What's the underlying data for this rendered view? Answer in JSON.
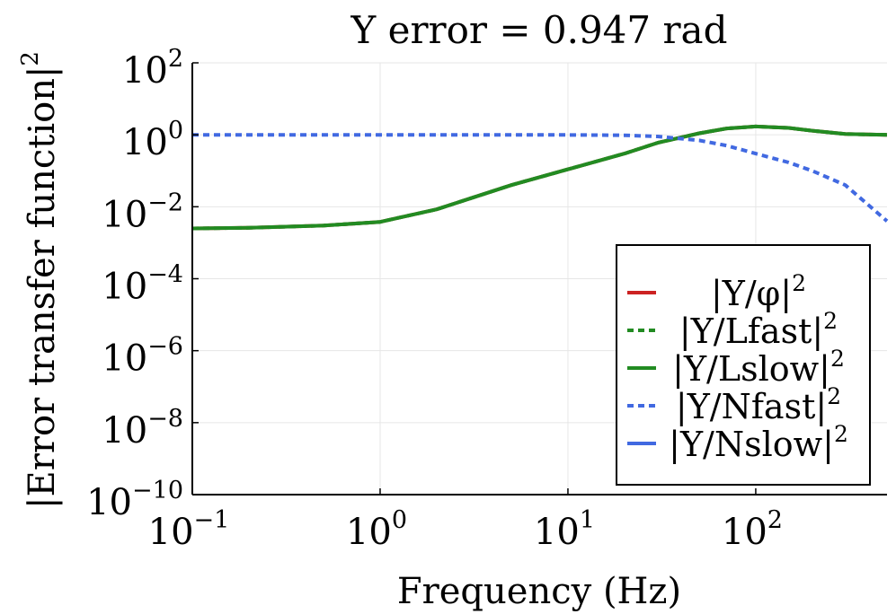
{
  "chart_data": {
    "type": "line",
    "title": "Y error = 0.947 rad",
    "xlabel": "Frequency (Hz)",
    "ylabel": "|Error transfer function|",
    "ylabel_exp": "2",
    "xscale": "log",
    "yscale": "log",
    "xlim": [
      0.1,
      500
    ],
    "ylim": [
      1e-10,
      100
    ],
    "grid": true,
    "legend_position": "bottom-right",
    "x_ticks": [
      {
        "value": 0.1,
        "base": "10",
        "exp": "−1"
      },
      {
        "value": 1,
        "base": "10",
        "exp": "0"
      },
      {
        "value": 10,
        "base": "10",
        "exp": "1"
      },
      {
        "value": 100,
        "base": "10",
        "exp": "2"
      }
    ],
    "y_ticks": [
      {
        "value": 100,
        "base": "10",
        "exp": "2"
      },
      {
        "value": 1,
        "base": "10",
        "exp": "0"
      },
      {
        "value": 0.01,
        "base": "10",
        "exp": "−2"
      },
      {
        "value": 0.0001,
        "base": "10",
        "exp": "−4"
      },
      {
        "value": 1e-06,
        "base": "10",
        "exp": "−6"
      },
      {
        "value": 1e-08,
        "base": "10",
        "exp": "−8"
      },
      {
        "value": 1e-10,
        "base": "10",
        "exp": "−10"
      }
    ],
    "x": [
      0.1,
      0.2,
      0.5,
      1,
      2,
      5,
      10,
      20,
      30,
      50,
      70,
      100,
      150,
      200,
      300,
      500
    ],
    "series": [
      {
        "name": "|Y/φ|",
        "exp": "2",
        "color": "#cc2222",
        "dash": "solid",
        "values": [
          0.0025,
          0.0026,
          0.003,
          0.0038,
          0.0085,
          0.04,
          0.11,
          0.3,
          0.6,
          1.1,
          1.5,
          1.7,
          1.55,
          1.3,
          1.05,
          1.0
        ]
      },
      {
        "name": "|Y/Lfast|",
        "exp": "2",
        "color": "#228b22",
        "dash": "dotted",
        "values": [
          0.0025,
          0.0026,
          0.003,
          0.0038,
          0.0085,
          0.04,
          0.11,
          0.3,
          0.6,
          1.1,
          1.5,
          1.7,
          1.55,
          1.3,
          1.05,
          1.0
        ]
      },
      {
        "name": "|Y/Lslow|",
        "exp": "2",
        "color": "#228b22",
        "dash": "solid",
        "values": [
          0.0025,
          0.0026,
          0.003,
          0.0038,
          0.0085,
          0.04,
          0.11,
          0.3,
          0.6,
          1.1,
          1.5,
          1.7,
          1.55,
          1.3,
          1.05,
          1.0
        ]
      },
      {
        "name": "|Y/Nfast|",
        "exp": "2",
        "color": "#4169e1",
        "dash": "dotted",
        "values": [
          1.0,
          1.0,
          1.0,
          1.0,
          1.0,
          1.0,
          0.99,
          0.97,
          0.9,
          0.7,
          0.5,
          0.3,
          0.17,
          0.1,
          0.04,
          0.004
        ]
      },
      {
        "name": "|Y/Nslow|",
        "exp": "2",
        "color": "#4169e1",
        "dash": "solid",
        "values": null
      }
    ]
  }
}
